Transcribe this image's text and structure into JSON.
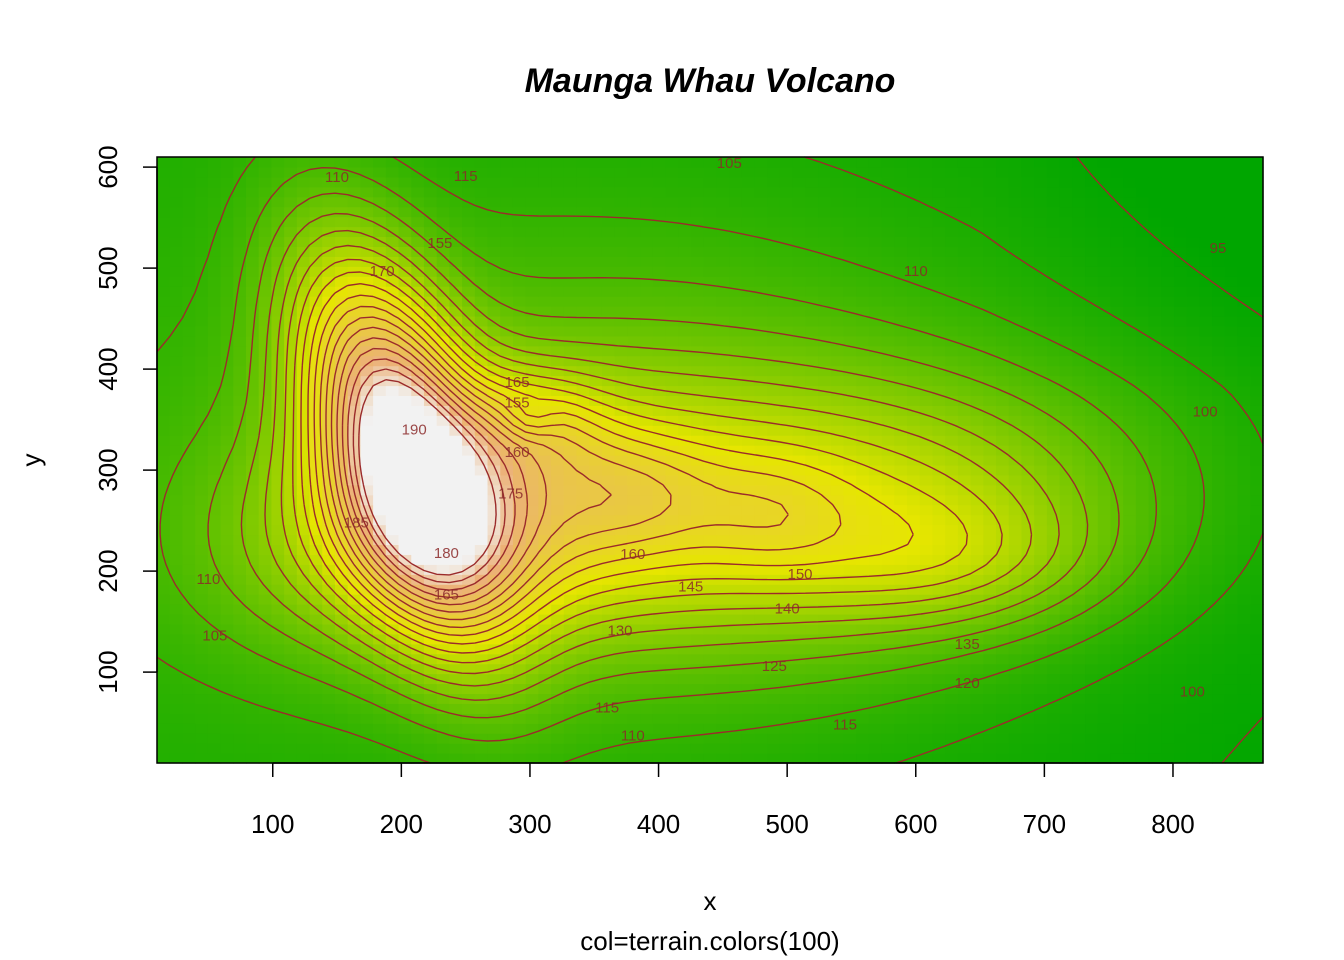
{
  "chart_data": {
    "type": "heatmap",
    "title": "Maunga Whau Volcano",
    "xlabel": "x",
    "ylabel": "y",
    "subtitle": "col=terrain.colors(100)",
    "xlim": [
      10,
      870
    ],
    "ylim": [
      10,
      610
    ],
    "xticks": [
      100,
      200,
      300,
      400,
      500,
      600,
      700,
      800
    ],
    "yticks": [
      100,
      200,
      300,
      400,
      500,
      600
    ],
    "colormap": "terrain.colors(100)",
    "color_range": [
      94,
      195
    ],
    "contour_color": "#9b2b2b",
    "contour_levels": [
      95,
      100,
      105,
      110,
      115,
      120,
      125,
      130,
      135,
      140,
      145,
      150,
      155,
      160,
      165,
      170,
      175,
      180,
      185,
      190
    ],
    "contour_labels": [
      {
        "text": "110",
        "x": 150,
        "y": 590
      },
      {
        "text": "115",
        "x": 250,
        "y": 591
      },
      {
        "text": "105",
        "x": 455,
        "y": 604
      },
      {
        "text": "155",
        "x": 230,
        "y": 525
      },
      {
        "text": "170",
        "x": 185,
        "y": 497
      },
      {
        "text": "110",
        "x": 600,
        "y": 497
      },
      {
        "text": "95",
        "x": 835,
        "y": 520
      },
      {
        "text": "165",
        "x": 290,
        "y": 387
      },
      {
        "text": "155",
        "x": 290,
        "y": 367
      },
      {
        "text": "190",
        "x": 210,
        "y": 340
      },
      {
        "text": "100",
        "x": 825,
        "y": 358
      },
      {
        "text": "160",
        "x": 290,
        "y": 318
      },
      {
        "text": "175",
        "x": 285,
        "y": 277
      },
      {
        "text": "185",
        "x": 165,
        "y": 248
      },
      {
        "text": "180",
        "x": 235,
        "y": 218
      },
      {
        "text": "160",
        "x": 380,
        "y": 217
      },
      {
        "text": "150",
        "x": 510,
        "y": 197
      },
      {
        "text": "165",
        "x": 235,
        "y": 177
      },
      {
        "text": "145",
        "x": 425,
        "y": 185
      },
      {
        "text": "140",
        "x": 500,
        "y": 163
      },
      {
        "text": "130",
        "x": 370,
        "y": 141
      },
      {
        "text": "135",
        "x": 640,
        "y": 128
      },
      {
        "text": "125",
        "x": 490,
        "y": 106
      },
      {
        "text": "120",
        "x": 640,
        "y": 89
      },
      {
        "text": "110",
        "x": 50,
        "y": 192
      },
      {
        "text": "105",
        "x": 55,
        "y": 136
      },
      {
        "text": "100",
        "x": 815,
        "y": 81
      },
      {
        "text": "115",
        "x": 360,
        "y": 65
      },
      {
        "text": "115",
        "x": 545,
        "y": 48
      },
      {
        "text": "110",
        "x": 380,
        "y": 37
      }
    ]
  }
}
